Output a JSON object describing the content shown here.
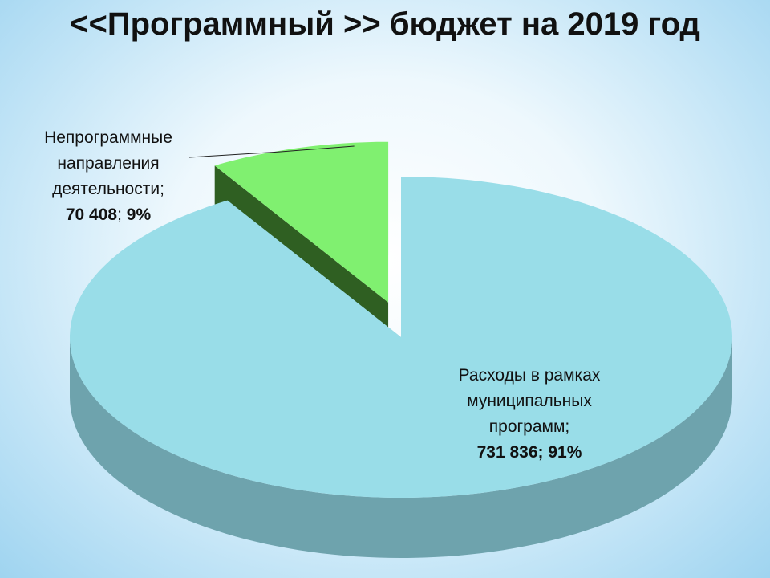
{
  "chart_data": {
    "type": "pie3d",
    "title": "<<Программный >> бюджет на 2019 год",
    "categories": [
      "Расходы в рамках муниципальных программ",
      "Непрограммные направления деятельности"
    ],
    "values": [
      731836,
      70408
    ],
    "value_labels": [
      "731 836",
      "70 408"
    ],
    "percents": [
      91,
      9
    ],
    "percent_labels": [
      "91%",
      "9%"
    ],
    "separator": ";",
    "colors": [
      "#99dde8",
      "#80f070"
    ],
    "side_colors": [
      "#6ea3ad",
      "#2f5f22"
    ]
  }
}
